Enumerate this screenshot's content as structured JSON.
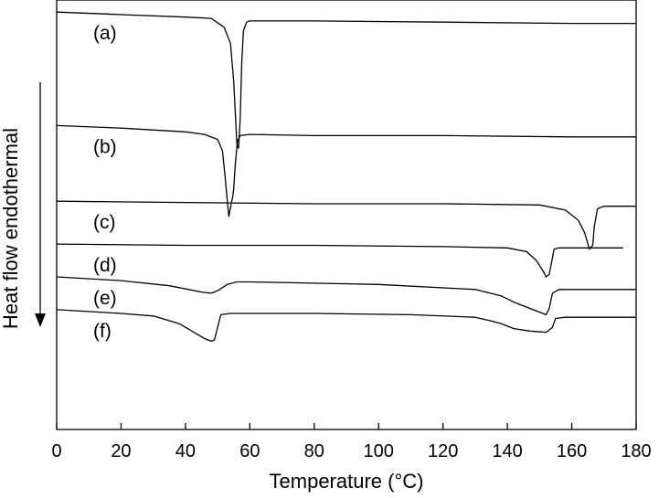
{
  "chart_data": {
    "type": "line",
    "title": "",
    "xlabel": "Temperature (°C)",
    "ylabel": "Heat flow endothermal",
    "xlim": [
      0,
      180
    ],
    "x_ticks": [
      0,
      20,
      40,
      60,
      80,
      100,
      120,
      140,
      160,
      180
    ],
    "y_ticks_shown": false,
    "grid": false,
    "legend": "none",
    "y_units": "arbitrary (stacked offsets)",
    "series": [
      {
        "name": "(a)",
        "points": [
          [
            0,
            2.1
          ],
          [
            20,
            2.08
          ],
          [
            40,
            2.06
          ],
          [
            48,
            2.05
          ],
          [
            52,
            1.98
          ],
          [
            54,
            1.85
          ],
          [
            55,
            1.55
          ],
          [
            55.6,
            1.25
          ],
          [
            56,
            1.05
          ],
          [
            56.5,
            1.02
          ],
          [
            57,
            1.25
          ],
          [
            57.5,
            1.7
          ],
          [
            58,
            1.95
          ],
          [
            59,
            2.02
          ],
          [
            60,
            2.03
          ],
          [
            80,
            2.03
          ],
          [
            120,
            2.02
          ],
          [
            160,
            2.01
          ],
          [
            180,
            2.01
          ]
        ]
      },
      {
        "name": "(b)",
        "points": [
          [
            0,
            1.2
          ],
          [
            20,
            1.18
          ],
          [
            40,
            1.15
          ],
          [
            46,
            1.13
          ],
          [
            50,
            1.09
          ],
          [
            51.5,
            1.0
          ],
          [
            52.3,
            0.8
          ],
          [
            53,
            0.6
          ],
          [
            53.5,
            0.48
          ],
          [
            54,
            0.55
          ],
          [
            54.7,
            0.64
          ],
          [
            55,
            0.7
          ],
          [
            55.5,
            0.9
          ],
          [
            56.2,
            1.08
          ],
          [
            57,
            1.12
          ],
          [
            60,
            1.13
          ],
          [
            80,
            1.12
          ],
          [
            120,
            1.12
          ],
          [
            160,
            1.11
          ],
          [
            180,
            1.11
          ]
        ]
      },
      {
        "name": "(c)",
        "points": [
          [
            0,
            0.6
          ],
          [
            40,
            0.59
          ],
          [
            80,
            0.58
          ],
          [
            120,
            0.58
          ],
          [
            150,
            0.57
          ],
          [
            158,
            0.53
          ],
          [
            162,
            0.45
          ],
          [
            164,
            0.35
          ],
          [
            165.5,
            0.22
          ],
          [
            166.5,
            0.25
          ],
          [
            167,
            0.4
          ],
          [
            168,
            0.54
          ],
          [
            170,
            0.56
          ],
          [
            180,
            0.56
          ]
        ]
      },
      {
        "name": "(d)",
        "points": [
          [
            0,
            0.26
          ],
          [
            40,
            0.25
          ],
          [
            80,
            0.25
          ],
          [
            120,
            0.24
          ],
          [
            140,
            0.23
          ],
          [
            146,
            0.2
          ],
          [
            149,
            0.13
          ],
          [
            151,
            0.05
          ],
          [
            152,
            0.0
          ],
          [
            153,
            0.02
          ],
          [
            154,
            0.15
          ],
          [
            154.5,
            0.22
          ],
          [
            156,
            0.23
          ],
          [
            176,
            0.23
          ]
        ]
      },
      {
        "name": "(e)",
        "points": [
          [
            0,
            0.0
          ],
          [
            20,
            -0.03
          ],
          [
            35,
            -0.07
          ],
          [
            45,
            -0.12
          ],
          [
            48,
            -0.13
          ],
          [
            50,
            -0.11
          ],
          [
            53,
            -0.06
          ],
          [
            56,
            -0.04
          ],
          [
            60,
            -0.04
          ],
          [
            100,
            -0.06
          ],
          [
            130,
            -0.1
          ],
          [
            138,
            -0.15
          ],
          [
            142,
            -0.2
          ],
          [
            146,
            -0.24
          ],
          [
            150,
            -0.28
          ],
          [
            152,
            -0.3
          ],
          [
            153,
            -0.25
          ],
          [
            154,
            -0.13
          ],
          [
            156,
            -0.1
          ],
          [
            160,
            -0.1
          ],
          [
            180,
            -0.1
          ]
        ]
      },
      {
        "name": "(f)",
        "points": [
          [
            0,
            -0.26
          ],
          [
            20,
            -0.29
          ],
          [
            30,
            -0.31
          ],
          [
            38,
            -0.37
          ],
          [
            42,
            -0.43
          ],
          [
            46,
            -0.49
          ],
          [
            48,
            -0.51
          ],
          [
            49,
            -0.5
          ],
          [
            50,
            -0.4
          ],
          [
            51,
            -0.3
          ],
          [
            54,
            -0.29
          ],
          [
            80,
            -0.29
          ],
          [
            110,
            -0.3
          ],
          [
            130,
            -0.32
          ],
          [
            135,
            -0.35
          ],
          [
            138,
            -0.37
          ],
          [
            142,
            -0.41
          ],
          [
            147,
            -0.43
          ],
          [
            152,
            -0.44
          ],
          [
            154,
            -0.4
          ],
          [
            155,
            -0.33
          ],
          [
            158,
            -0.32
          ],
          [
            180,
            -0.32
          ]
        ]
      }
    ]
  }
}
